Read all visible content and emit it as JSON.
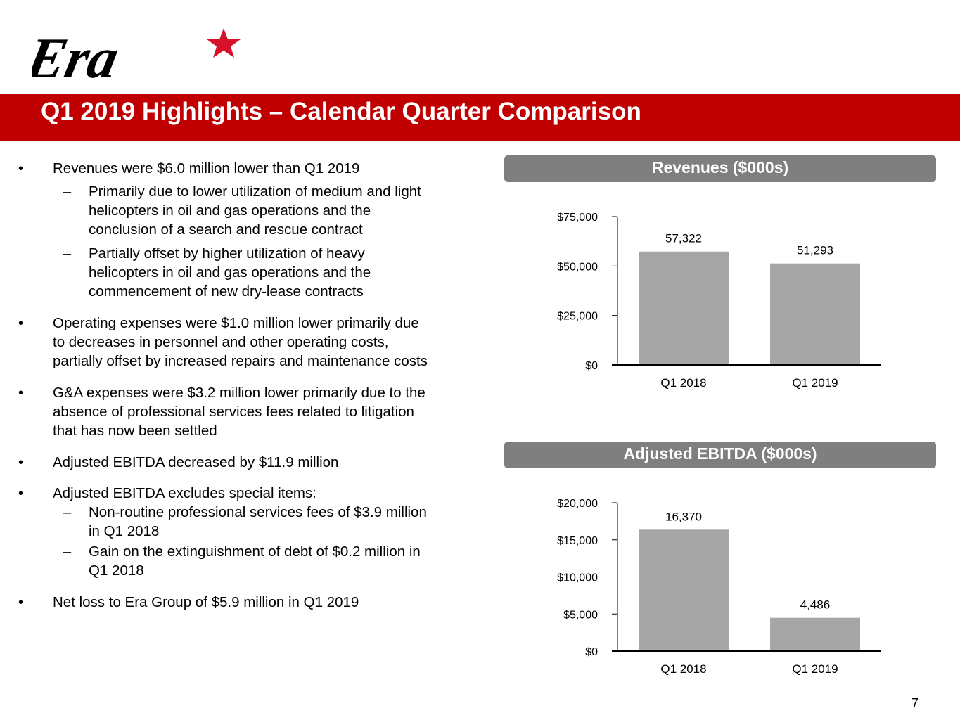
{
  "logo": {
    "text": "Era",
    "accent_color": "#d6112a"
  },
  "header": {
    "title": "Q1 2019 Highlights – Calendar Quarter Comparison",
    "background": "#c00000"
  },
  "bullets": [
    {
      "lines": [
        "Revenues were $6.0 million lower than Q1 2019"
      ],
      "subs": [
        {
          "lines": [
            "Primarily due to lower utilization of medium and light",
            "helicopters in oil and gas operations and the",
            "conclusion of a search and rescue contract"
          ]
        },
        {
          "lines": [
            "Partially offset by higher utilization of heavy",
            "helicopters in oil and gas operations and the",
            "commencement of new dry-lease contracts"
          ]
        }
      ]
    },
    {
      "lines": [
        "Operating expenses were $1.0 million lower primarily due",
        "to decreases in personnel and other operating costs,",
        "partially offset by increased repairs and maintenance costs"
      ],
      "subs": []
    },
    {
      "lines": [
        "G&A expenses were $3.2 million lower primarily due to the",
        "absence of professional services fees related to litigation",
        "that has now been settled"
      ],
      "subs": []
    },
    {
      "lines": [
        "Adjusted EBITDA decreased by $11.9 million"
      ],
      "subs": []
    },
    {
      "lines": [
        "Adjusted EBITDA excludes special items:"
      ],
      "subs": [
        {
          "lines": [
            "Non-routine professional services fees of $3.9 million",
            "in Q1 2018"
          ]
        },
        {
          "lines": [
            "Gain on the extinguishment of debt of $0.2 million in",
            "Q1 2018"
          ]
        }
      ]
    },
    {
      "lines": [
        "Net loss to Era Group of $5.9 million in Q1 2019"
      ],
      "subs": []
    }
  ],
  "chart_data": [
    {
      "type": "bar",
      "title": "Revenues ($000s)",
      "categories": [
        "Q1 2018",
        "Q1 2019"
      ],
      "values": [
        57322,
        51293
      ],
      "value_labels": [
        "57,322",
        "51,293"
      ],
      "yticks": [
        "$0",
        "$25,000",
        "$50,000",
        "$75,000"
      ],
      "ytick_values": [
        0,
        25000,
        50000,
        75000
      ],
      "ylim": [
        0,
        75000
      ],
      "bar_color": "#a6a6a6",
      "grid": false
    },
    {
      "type": "bar",
      "title": "Adjusted EBITDA ($000s)",
      "categories": [
        "Q1 2018",
        "Q1 2019"
      ],
      "values": [
        16370,
        4486
      ],
      "value_labels": [
        "16,370",
        "4,486"
      ],
      "yticks": [
        "$0",
        "$5,000",
        "$10,000",
        "$15,000",
        "$20,000"
      ],
      "ytick_values": [
        0,
        5000,
        10000,
        15000,
        20000
      ],
      "ylim": [
        0,
        20000
      ],
      "bar_color": "#a6a6a6",
      "grid": false
    }
  ],
  "footer": {
    "page_number": "7"
  }
}
